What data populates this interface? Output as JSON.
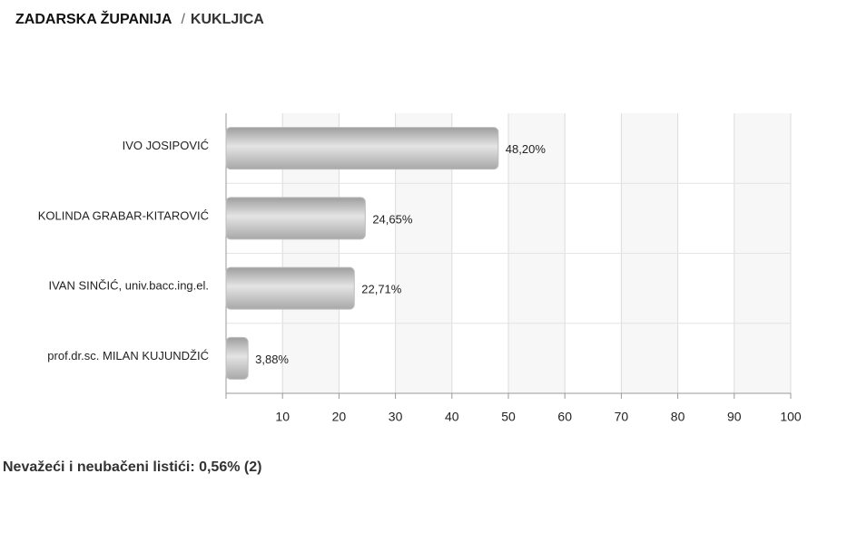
{
  "breadcrumb": {
    "region": "ZADARSKA ŽUPANIJA",
    "separator": "/",
    "place": "KUKLJICA"
  },
  "chart_data": {
    "type": "bar",
    "orientation": "horizontal",
    "categories": [
      "IVO JOSIPOVIĆ",
      "KOLINDA GRABAR-KITAROVIĆ",
      "IVAN SINČIĆ, univ.bacc.ing.el.",
      "prof.dr.sc. MILAN KUJUNDŽIĆ"
    ],
    "values": [
      48.2,
      24.65,
      22.71,
      3.88
    ],
    "value_labels": [
      "48,20%",
      "24,65%",
      "22,71%",
      "3,88%"
    ],
    "color": "#bdbdbd",
    "xlim": [
      0,
      100
    ],
    "xticks": [
      10,
      20,
      30,
      40,
      50,
      60,
      70,
      80,
      90,
      100
    ],
    "grid": true
  },
  "footer": "Nevažeći i neubačeni listići: 0,56% (2)"
}
